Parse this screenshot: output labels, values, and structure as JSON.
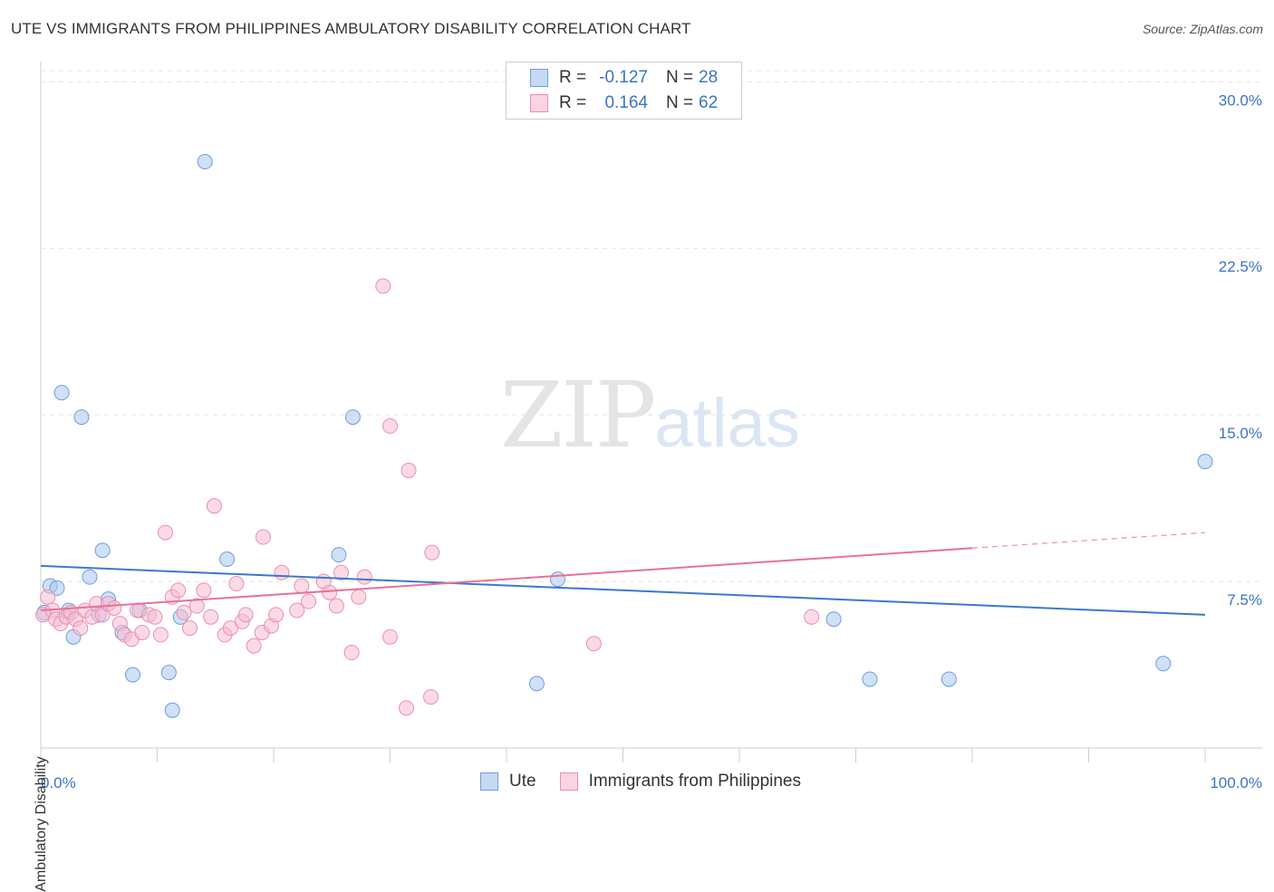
{
  "title": "UTE VS IMMIGRANTS FROM PHILIPPINES AMBULATORY DISABILITY CORRELATION CHART",
  "source": "Source: ZipAtlas.com",
  "watermark": {
    "zip": "ZIP",
    "atlas": "atlas"
  },
  "colors": {
    "ute_fill": "#a9c6ef",
    "ute_stroke": "#6d9fdc",
    "ute_line": "#3a78d0",
    "phil_fill": "#f7bcd0",
    "phil_stroke": "#ea8fb0",
    "phil_line": "#e8709a",
    "tick_label": "#3a74c4",
    "grid": "#e3e3e3"
  },
  "legend": {
    "rows": [
      {
        "r_label": "R =",
        "r_value": "-0.127",
        "n_label": "N =",
        "n_value": "28"
      },
      {
        "r_label": "R =",
        "r_value": "0.164",
        "n_label": "N =",
        "n_value": "62"
      }
    ]
  },
  "bottom_legend": {
    "series_a": "Ute",
    "series_b": "Immigrants from Philippines"
  },
  "chart_data": {
    "type": "scatter",
    "title": "UTE VS IMMIGRANTS FROM PHILIPPINES AMBULATORY DISABILITY CORRELATION CHART",
    "xlabel": "",
    "ylabel": "Ambulatory Disability",
    "xlim": [
      0,
      100
    ],
    "ylim": [
      0,
      30.5
    ],
    "x_tick_labels": [
      {
        "value": 0,
        "label": "0.0%"
      },
      {
        "value": 100,
        "label": "100.0%"
      }
    ],
    "y_ticks": [
      {
        "value": 7.5,
        "label": "7.5%"
      },
      {
        "value": 15.0,
        "label": "15.0%"
      },
      {
        "value": 22.5,
        "label": "22.5%"
      },
      {
        "value": 30.0,
        "label": "30.0%"
      }
    ],
    "x_minor_ticks": [
      0,
      10,
      20,
      30,
      40,
      50,
      60,
      70,
      80,
      90,
      100
    ],
    "grid": true,
    "series": [
      {
        "name": "Ute",
        "points": [
          [
            0.3,
            6.1
          ],
          [
            0.8,
            7.3
          ],
          [
            1.4,
            7.2
          ],
          [
            1.8,
            16.0
          ],
          [
            2.4,
            6.2
          ],
          [
            2.8,
            5.0
          ],
          [
            3.5,
            14.9
          ],
          [
            4.2,
            7.7
          ],
          [
            5.0,
            6.0
          ],
          [
            5.3,
            8.9
          ],
          [
            5.8,
            6.7
          ],
          [
            7.0,
            5.2
          ],
          [
            7.9,
            3.3
          ],
          [
            8.5,
            6.2
          ],
          [
            11.0,
            3.4
          ],
          [
            11.3,
            1.7
          ],
          [
            12.0,
            5.9
          ],
          [
            14.1,
            26.4
          ],
          [
            16.0,
            8.5
          ],
          [
            25.6,
            8.7
          ],
          [
            26.8,
            14.9
          ],
          [
            42.6,
            2.9
          ],
          [
            44.4,
            7.6
          ],
          [
            68.1,
            5.8
          ],
          [
            71.2,
            3.1
          ],
          [
            78.0,
            3.1
          ],
          [
            96.4,
            3.8
          ],
          [
            100.0,
            12.9
          ]
        ],
        "trend": {
          "x": [
            0,
            100
          ],
          "y": [
            8.2,
            6.0
          ],
          "dashed_from": null
        }
      },
      {
        "name": "Immigrants from Philippines",
        "points": [
          [
            0.2,
            6.0
          ],
          [
            0.6,
            6.8
          ],
          [
            1.0,
            6.2
          ],
          [
            1.3,
            5.8
          ],
          [
            1.7,
            5.6
          ],
          [
            2.2,
            5.9
          ],
          [
            2.6,
            6.1
          ],
          [
            3.0,
            5.8
          ],
          [
            3.4,
            5.4
          ],
          [
            3.8,
            6.2
          ],
          [
            4.4,
            5.9
          ],
          [
            4.8,
            6.5
          ],
          [
            5.3,
            6.0
          ],
          [
            5.8,
            6.5
          ],
          [
            6.3,
            6.3
          ],
          [
            6.8,
            5.6
          ],
          [
            7.2,
            5.1
          ],
          [
            7.8,
            4.9
          ],
          [
            8.3,
            6.2
          ],
          [
            8.7,
            5.2
          ],
          [
            9.3,
            6.0
          ],
          [
            9.8,
            5.9
          ],
          [
            10.3,
            5.1
          ],
          [
            10.7,
            9.7
          ],
          [
            11.3,
            6.8
          ],
          [
            11.8,
            7.1
          ],
          [
            12.3,
            6.1
          ],
          [
            12.8,
            5.4
          ],
          [
            13.4,
            6.4
          ],
          [
            14.0,
            7.1
          ],
          [
            14.6,
            5.9
          ],
          [
            14.9,
            10.9
          ],
          [
            15.8,
            5.1
          ],
          [
            16.3,
            5.4
          ],
          [
            16.8,
            7.4
          ],
          [
            17.3,
            5.7
          ],
          [
            17.6,
            6.0
          ],
          [
            18.3,
            4.6
          ],
          [
            19.0,
            5.2
          ],
          [
            19.1,
            9.5
          ],
          [
            19.8,
            5.5
          ],
          [
            20.2,
            6.0
          ],
          [
            20.7,
            7.9
          ],
          [
            22.0,
            6.2
          ],
          [
            22.4,
            7.3
          ],
          [
            23.0,
            6.6
          ],
          [
            24.3,
            7.5
          ],
          [
            24.8,
            7.0
          ],
          [
            25.4,
            6.4
          ],
          [
            25.8,
            7.9
          ],
          [
            26.7,
            4.3
          ],
          [
            27.3,
            6.8
          ],
          [
            27.8,
            7.7
          ],
          [
            29.4,
            20.8
          ],
          [
            30.0,
            14.5
          ],
          [
            30.0,
            5.0
          ],
          [
            31.4,
            1.8
          ],
          [
            31.6,
            12.5
          ],
          [
            33.5,
            2.3
          ],
          [
            33.6,
            8.8
          ],
          [
            47.5,
            4.7
          ],
          [
            66.2,
            5.9
          ]
        ],
        "trend": {
          "x": [
            0,
            100
          ],
          "y": [
            6.2,
            9.7
          ],
          "dashed_from": 80
        }
      }
    ]
  }
}
